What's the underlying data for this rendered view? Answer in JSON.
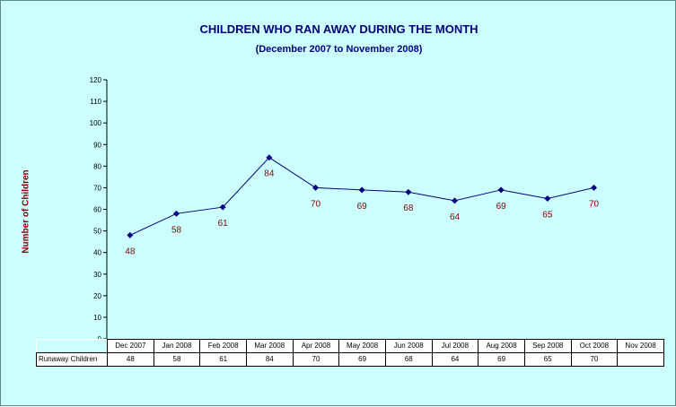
{
  "colors": {
    "background": "#ccffff",
    "title": "#000080",
    "axis_title": "#800000",
    "line": "#000080",
    "data_label": "#800000"
  },
  "chart_data": {
    "type": "line",
    "title": "CHILDREN WHO RAN AWAY DURING THE MONTH",
    "subtitle": "(December 2007 to November 2008)",
    "xlabel": "",
    "ylabel": "Number of Children",
    "ylim": [
      0,
      120
    ],
    "yticks": [
      0,
      10,
      20,
      30,
      40,
      50,
      60,
      70,
      80,
      90,
      100,
      110,
      120
    ],
    "grid": false,
    "categories": [
      "Dec 2007",
      "Jan 2008",
      "Feb 2008",
      "Mar 2008",
      "Apr 2008",
      "May 2008",
      "Jun 2008",
      "Jul 2008",
      "Aug 2008",
      "Sep 2008",
      "Oct 2008",
      "Nov 2008"
    ],
    "series": [
      {
        "name": "Runaway Children",
        "values": [
          48,
          58,
          61,
          84,
          70,
          69,
          68,
          64,
          69,
          65,
          70,
          null
        ]
      }
    ]
  }
}
